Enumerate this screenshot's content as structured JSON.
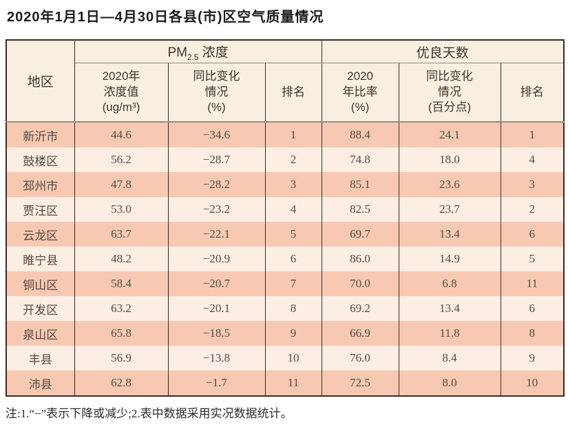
{
  "title": "2020年1月1日—4月30日各县(市)区空气质量情况",
  "note": "注:1.“−”表示下降或减少;2.表中数据采用实况数据统计。",
  "table": {
    "region_header": "地区",
    "pm25_group": {
      "prefix": "PM",
      "sub": "2.5",
      "suffix": " 浓度"
    },
    "good_days_group": "优良天数",
    "sub_headers": {
      "pm25_value": "2020年\n浓度值\n(ug/m³)",
      "pm25_change": "同比变化\n情况\n(%)",
      "pm25_rank": "排名",
      "good_rate": "2020\n年比率\n(%)",
      "good_change": "同比变化\n情况\n(百分点)",
      "good_rank": "排名"
    },
    "rows": [
      {
        "region": "新沂市",
        "pm25_value": "44.6",
        "pm25_change": "−34.6",
        "pm25_rank": "1",
        "good_rate": "88.4",
        "good_change": "24.1",
        "good_rank": "1"
      },
      {
        "region": "鼓楼区",
        "pm25_value": "56.2",
        "pm25_change": "−28.7",
        "pm25_rank": "2",
        "good_rate": "74.8",
        "good_change": "18.0",
        "good_rank": "4"
      },
      {
        "region": "邳州市",
        "pm25_value": "47.8",
        "pm25_change": "−28.2",
        "pm25_rank": "3",
        "good_rate": "85.1",
        "good_change": "23.6",
        "good_rank": "3"
      },
      {
        "region": "贾汪区",
        "pm25_value": "53.0",
        "pm25_change": "−23.2",
        "pm25_rank": "4",
        "good_rate": "82.5",
        "good_change": "23.7",
        "good_rank": "2"
      },
      {
        "region": "云龙区",
        "pm25_value": "63.7",
        "pm25_change": "−22.1",
        "pm25_rank": "5",
        "good_rate": "69.7",
        "good_change": "13.4",
        "good_rank": "6"
      },
      {
        "region": "睢宁县",
        "pm25_value": "48.2",
        "pm25_change": "−20.9",
        "pm25_rank": "6",
        "good_rate": "86.0",
        "good_change": "14.9",
        "good_rank": "5"
      },
      {
        "region": "铜山区",
        "pm25_value": "58.4",
        "pm25_change": "−20.7",
        "pm25_rank": "7",
        "good_rate": "70.0",
        "good_change": "6.8",
        "good_rank": "11"
      },
      {
        "region": "开发区",
        "pm25_value": "63.2",
        "pm25_change": "−20.1",
        "pm25_rank": "8",
        "good_rate": "69.2",
        "good_change": "13.4",
        "good_rank": "6"
      },
      {
        "region": "泉山区",
        "pm25_value": "65.8",
        "pm25_change": "−18.5",
        "pm25_rank": "9",
        "good_rate": "66.9",
        "good_change": "11.8",
        "good_rank": "8"
      },
      {
        "region": "丰县",
        "pm25_value": "56.9",
        "pm25_change": "−13.8",
        "pm25_rank": "10",
        "good_rate": "76.0",
        "good_change": "8.4",
        "good_rank": "9"
      },
      {
        "region": "沛县",
        "pm25_value": "62.8",
        "pm25_change": "−1.7",
        "pm25_rank": "11",
        "good_rate": "72.5",
        "good_change": "8.0",
        "good_rank": "10"
      }
    ]
  },
  "colors": {
    "row_odd": "#f8c9b2",
    "row_even": "#fdeee4",
    "header_bg": "#f8efe0",
    "border_dark": "#3b2a24",
    "line_gray": "#9a887c",
    "title_text": "#1b1b1b",
    "data_text": "#534a42"
  }
}
